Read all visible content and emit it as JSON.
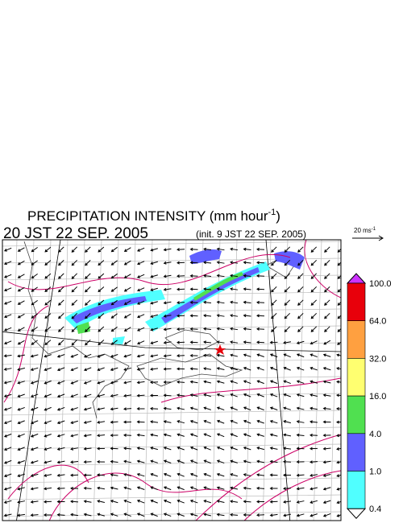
{
  "header": {
    "title": "PRECIPITATION INTENSITY (mm hour",
    "title_exponent": "-1",
    "title_close": ")",
    "valid_time": "20 JST 22 SEP. 2005",
    "init_time": "(init. 9 JST 22 SEP. 2005)"
  },
  "wind_scale": {
    "label": "20 ms",
    "exponent": "-1"
  },
  "legend": {
    "items": [
      {
        "label": "100.0",
        "color": "#e8000b"
      },
      {
        "label": "64.0",
        "color": "#ffa040"
      },
      {
        "label": "32.0",
        "color": "#ffff70"
      },
      {
        "label": "16.0",
        "color": "#50e050"
      },
      {
        "label": "4.0",
        "color": "#6060ff"
      },
      {
        "label": "1.0",
        "color": "#50ffff"
      },
      {
        "label": "0.4",
        "color": "#ffffff"
      }
    ],
    "over_color": "#cc33ff"
  }
}
